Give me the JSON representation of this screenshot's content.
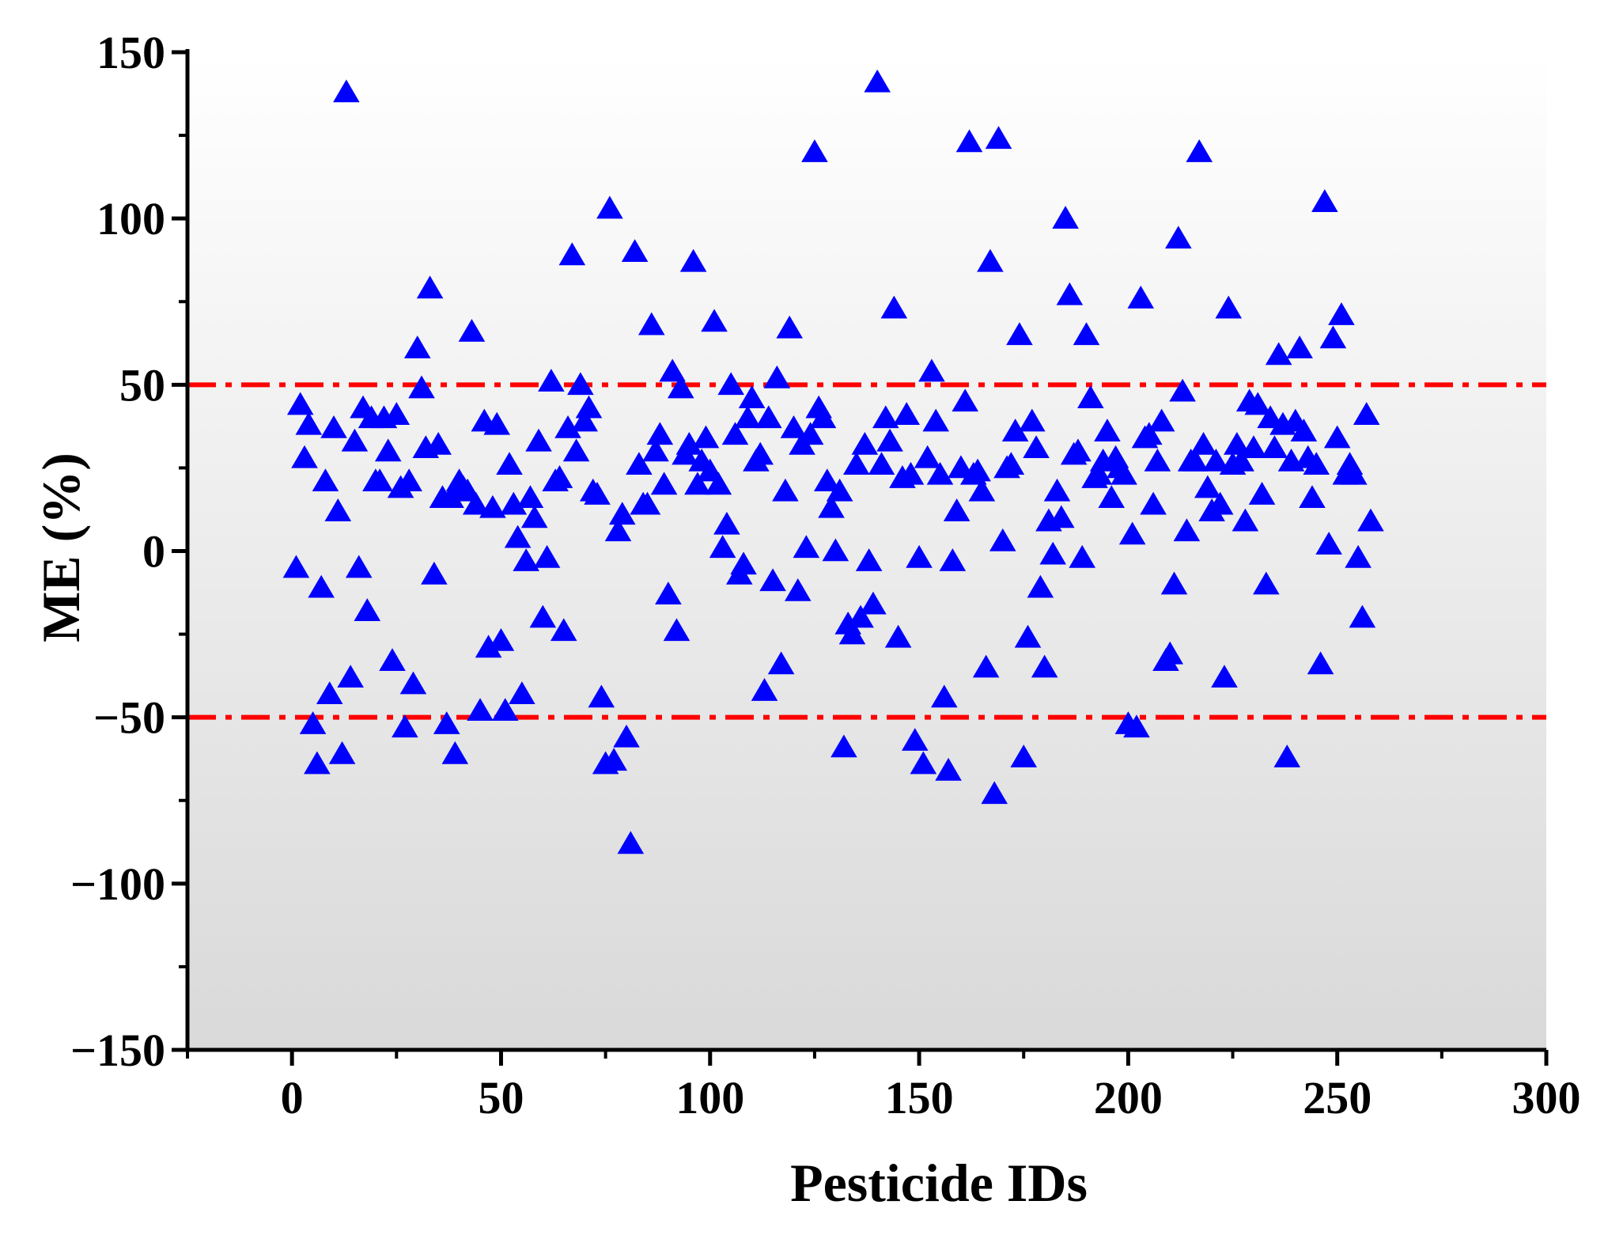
{
  "chart_data": {
    "type": "scatter",
    "title": "",
    "xlabel": "Pesticide IDs",
    "ylabel": "ME (%)",
    "xlim": [
      -25,
      300
    ],
    "ylim": [
      -150,
      150
    ],
    "xticks": [
      0,
      50,
      100,
      150,
      200,
      250,
      300
    ],
    "yticks": [
      -150,
      -100,
      -50,
      0,
      50,
      100,
      150
    ],
    "xtick_labels": [
      "0",
      "50",
      "100",
      "150",
      "200",
      "250",
      "300"
    ],
    "ytick_labels": [
      "−150",
      "−100",
      "−50",
      "0",
      "50",
      "100",
      "150"
    ],
    "marker": "triangle",
    "marker_color": "#0000FF",
    "background_gradient": [
      "#FFFFFF",
      "#D9D9D9"
    ],
    "reference_lines": [
      {
        "y": 50,
        "color": "#FF0000",
        "style": "dash-dot"
      },
      {
        "y": -50,
        "color": "#FF0000",
        "style": "dash-dot"
      }
    ],
    "series": [
      {
        "name": "ME",
        "points": [
          [
            1,
            -5
          ],
          [
            2,
            44
          ],
          [
            3,
            28
          ],
          [
            4,
            38
          ],
          [
            5,
            -52
          ],
          [
            6,
            -64
          ],
          [
            7,
            -11
          ],
          [
            8,
            21
          ],
          [
            9,
            -43
          ],
          [
            10,
            37
          ],
          [
            11,
            12
          ],
          [
            12,
            -61
          ],
          [
            13,
            138
          ],
          [
            14,
            -38
          ],
          [
            15,
            33
          ],
          [
            16,
            -5
          ],
          [
            17,
            43
          ],
          [
            18,
            -18
          ],
          [
            19,
            40
          ],
          [
            20,
            21
          ],
          [
            21,
            21
          ],
          [
            22,
            40
          ],
          [
            23,
            30
          ],
          [
            24,
            -33
          ],
          [
            25,
            41
          ],
          [
            26,
            19
          ],
          [
            27,
            -53
          ],
          [
            28,
            21
          ],
          [
            29,
            -40
          ],
          [
            30,
            61
          ],
          [
            31,
            49
          ],
          [
            32,
            31
          ],
          [
            33,
            79
          ],
          [
            34,
            -7
          ],
          [
            35,
            32
          ],
          [
            36,
            16
          ],
          [
            37,
            -52
          ],
          [
            38,
            16
          ],
          [
            39,
            -61
          ],
          [
            40,
            21
          ],
          [
            41,
            19
          ],
          [
            42,
            18
          ],
          [
            43,
            66
          ],
          [
            44,
            14
          ],
          [
            45,
            -48
          ],
          [
            46,
            39
          ],
          [
            47,
            -29
          ],
          [
            48,
            13
          ],
          [
            49,
            38
          ],
          [
            50,
            -27
          ],
          [
            51,
            -48
          ],
          [
            52,
            26
          ],
          [
            53,
            14
          ],
          [
            54,
            4
          ],
          [
            55,
            -43
          ],
          [
            56,
            -3
          ],
          [
            57,
            16
          ],
          [
            58,
            10
          ],
          [
            59,
            33
          ],
          [
            60,
            -20
          ],
          [
            61,
            -2
          ],
          [
            62,
            51
          ],
          [
            63,
            21
          ],
          [
            64,
            22
          ],
          [
            65,
            -24
          ],
          [
            66,
            37
          ],
          [
            67,
            89
          ],
          [
            68,
            30
          ],
          [
            69,
            50
          ],
          [
            70,
            39
          ],
          [
            71,
            43
          ],
          [
            72,
            18
          ],
          [
            73,
            17
          ],
          [
            74,
            -44
          ],
          [
            75,
            -64
          ],
          [
            76,
            103
          ],
          [
            77,
            -63
          ],
          [
            78,
            6
          ],
          [
            79,
            11
          ],
          [
            80,
            -56
          ],
          [
            81,
            -88
          ],
          [
            82,
            90
          ],
          [
            83,
            26
          ],
          [
            84,
            14
          ],
          [
            85,
            14
          ],
          [
            86,
            68
          ],
          [
            87,
            30
          ],
          [
            88,
            35
          ],
          [
            89,
            20
          ],
          [
            90,
            -13
          ],
          [
            91,
            54
          ],
          [
            92,
            -24
          ],
          [
            93,
            49
          ],
          [
            94,
            29
          ],
          [
            95,
            32
          ],
          [
            96,
            87
          ],
          [
            97,
            20
          ],
          [
            98,
            27
          ],
          [
            99,
            34
          ],
          [
            100,
            24
          ],
          [
            101,
            69
          ],
          [
            102,
            20
          ],
          [
            103,
            1
          ],
          [
            104,
            8
          ],
          [
            105,
            50
          ],
          [
            106,
            35
          ],
          [
            107,
            -7
          ],
          [
            108,
            -4
          ],
          [
            109,
            40
          ],
          [
            110,
            46
          ],
          [
            111,
            27
          ],
          [
            112,
            29
          ],
          [
            113,
            -42
          ],
          [
            114,
            40
          ],
          [
            115,
            -9
          ],
          [
            116,
            52
          ],
          [
            117,
            -34
          ],
          [
            118,
            18
          ],
          [
            119,
            67
          ],
          [
            120,
            37
          ],
          [
            121,
            -12
          ],
          [
            122,
            32
          ],
          [
            123,
            1
          ],
          [
            124,
            35
          ],
          [
            125,
            120
          ],
          [
            126,
            43
          ],
          [
            127,
            40
          ],
          [
            128,
            21
          ],
          [
            129,
            13
          ],
          [
            130,
            0
          ],
          [
            131,
            18
          ],
          [
            132,
            -59
          ],
          [
            133,
            -22
          ],
          [
            134,
            -25
          ],
          [
            135,
            26
          ],
          [
            136,
            -20
          ],
          [
            137,
            32
          ],
          [
            138,
            -3
          ],
          [
            139,
            -16
          ],
          [
            140,
            141
          ],
          [
            141,
            26
          ],
          [
            142,
            40
          ],
          [
            143,
            33
          ],
          [
            144,
            73
          ],
          [
            145,
            -26
          ],
          [
            146,
            22
          ],
          [
            147,
            41
          ],
          [
            148,
            23
          ],
          [
            149,
            -57
          ],
          [
            150,
            -2
          ],
          [
            151,
            -64
          ],
          [
            152,
            28
          ],
          [
            153,
            54
          ],
          [
            154,
            39
          ],
          [
            155,
            23
          ],
          [
            156,
            -44
          ],
          [
            157,
            -66
          ],
          [
            158,
            -3
          ],
          [
            159,
            12
          ],
          [
            160,
            25
          ],
          [
            161,
            45
          ],
          [
            162,
            123
          ],
          [
            163,
            23
          ],
          [
            164,
            24
          ],
          [
            165,
            18
          ],
          [
            166,
            -35
          ],
          [
            167,
            87
          ],
          [
            168,
            -73
          ],
          [
            169,
            124
          ],
          [
            170,
            3
          ],
          [
            171,
            25
          ],
          [
            172,
            26
          ],
          [
            173,
            36
          ],
          [
            174,
            65
          ],
          [
            175,
            -62
          ],
          [
            176,
            -26
          ],
          [
            177,
            39
          ],
          [
            178,
            31
          ],
          [
            179,
            -11
          ],
          [
            180,
            -35
          ],
          [
            181,
            9
          ],
          [
            182,
            -1
          ],
          [
            183,
            18
          ],
          [
            184,
            10
          ],
          [
            185,
            100
          ],
          [
            186,
            77
          ],
          [
            187,
            29
          ],
          [
            188,
            30
          ],
          [
            189,
            -2
          ],
          [
            190,
            65
          ],
          [
            191,
            46
          ],
          [
            192,
            22
          ],
          [
            193,
            23
          ],
          [
            194,
            27
          ],
          [
            195,
            36
          ],
          [
            196,
            16
          ],
          [
            197,
            28
          ],
          [
            198,
            25
          ],
          [
            199,
            23
          ],
          [
            200,
            -52
          ],
          [
            201,
            5
          ],
          [
            202,
            -53
          ],
          [
            203,
            76
          ],
          [
            204,
            34
          ],
          [
            205,
            35
          ],
          [
            206,
            14
          ],
          [
            207,
            27
          ],
          [
            208,
            39
          ],
          [
            209,
            -33
          ],
          [
            210,
            -31
          ],
          [
            211,
            -10
          ],
          [
            212,
            94
          ],
          [
            213,
            48
          ],
          [
            214,
            6
          ],
          [
            215,
            27
          ],
          [
            216,
            27
          ],
          [
            217,
            120
          ],
          [
            218,
            32
          ],
          [
            219,
            19
          ],
          [
            220,
            12
          ],
          [
            221,
            27
          ],
          [
            222,
            14
          ],
          [
            223,
            -38
          ],
          [
            224,
            73
          ],
          [
            225,
            26
          ],
          [
            226,
            32
          ],
          [
            227,
            27
          ],
          [
            228,
            9
          ],
          [
            229,
            45
          ],
          [
            230,
            31
          ],
          [
            231,
            44
          ],
          [
            232,
            17
          ],
          [
            233,
            -10
          ],
          [
            234,
            40
          ],
          [
            235,
            31
          ],
          [
            236,
            59
          ],
          [
            237,
            38
          ],
          [
            238,
            -62
          ],
          [
            239,
            27
          ],
          [
            240,
            39
          ],
          [
            241,
            61
          ],
          [
            242,
            36
          ],
          [
            243,
            28
          ],
          [
            244,
            16
          ],
          [
            245,
            26
          ],
          [
            246,
            -34
          ],
          [
            247,
            105
          ],
          [
            248,
            2
          ],
          [
            249,
            64
          ],
          [
            250,
            34
          ],
          [
            251,
            71
          ],
          [
            252,
            23
          ],
          [
            253,
            26
          ],
          [
            254,
            23
          ],
          [
            255,
            -2
          ],
          [
            256,
            -20
          ],
          [
            257,
            41
          ],
          [
            258,
            9
          ]
        ]
      }
    ]
  }
}
